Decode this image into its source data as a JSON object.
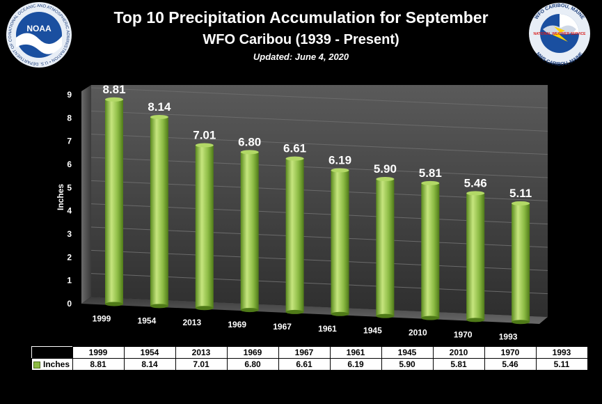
{
  "header": {
    "title": "Top 10 Precipitation Accumulation for September",
    "subtitle": "WFO Caribou (1939 - Present)",
    "updated": "Updated: June 4, 2020"
  },
  "logos": {
    "noaa_center": "NOAA",
    "noaa_ring": "NATIONAL OCEANIC AND ATMOSPHERIC ADMINISTRATION • U.S. DEPARTMENT OF COMMERCE •",
    "nws_top": "WFO CARIBOU, MAINE",
    "nws_middle": "NATIONAL WEATHER SERVICE",
    "nws_bottom": "NWS CARIBOU, MAINE"
  },
  "chart_data": {
    "type": "bar",
    "categories": [
      "1999",
      "1954",
      "2013",
      "1969",
      "1967",
      "1961",
      "1945",
      "2010",
      "1970",
      "1993"
    ],
    "series": [
      {
        "name": "Inches",
        "values": [
          8.81,
          8.14,
          7.01,
          6.8,
          6.61,
          6.19,
          5.9,
          5.81,
          5.46,
          5.11
        ]
      }
    ],
    "data_labels": [
      "8.81",
      "8.14",
      "7.01",
      "6.80",
      "6.61",
      "6.19",
      "5.90",
      "5.81",
      "5.46",
      "5.11"
    ],
    "ylabel": "Inches",
    "ylim": [
      0,
      9
    ],
    "yticks": [
      0,
      1,
      2,
      3,
      4,
      5,
      6,
      7,
      8,
      9
    ],
    "grid": true,
    "legend": "data-table"
  },
  "colors": {
    "bar": "#8cbb44",
    "background": "#000000",
    "wall": "#4a4a4a"
  }
}
